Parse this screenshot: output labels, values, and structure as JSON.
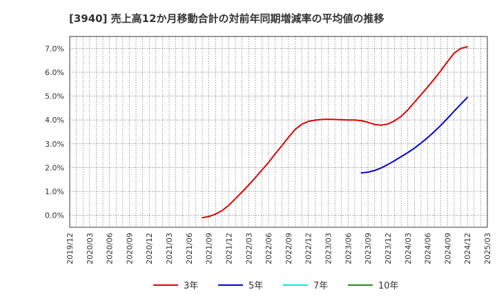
{
  "chart_data": {
    "type": "line",
    "title": "[3940]  売上高12か月移動合計の対前年同期増減率の平均値の推移",
    "xlabel": "",
    "ylabel": "",
    "ylim": [
      -0.5,
      7.5
    ],
    "y_ticks": [
      0.0,
      1.0,
      2.0,
      3.0,
      4.0,
      5.0,
      6.0,
      7.0
    ],
    "y_tick_labels": [
      "0.0%",
      "1.0%",
      "2.0%",
      "3.0%",
      "4.0%",
      "5.0%",
      "6.0%",
      "7.0%"
    ],
    "x_tick_labels": [
      "2019/12",
      "2020/03",
      "2020/06",
      "2020/09",
      "2020/12",
      "2021/03",
      "2021/06",
      "2021/09",
      "2021/12",
      "2022/03",
      "2022/06",
      "2022/09",
      "2022/12",
      "2023/03",
      "2023/06",
      "2023/09",
      "2023/12",
      "2024/03",
      "2024/06",
      "2024/09",
      "2024/12",
      "2025/03"
    ],
    "grid": true,
    "legend_position": "bottom",
    "series": [
      {
        "name": "3年",
        "color": "#dd0000",
        "points": [
          [
            "2021/08",
            -0.1
          ],
          [
            "2021/09",
            -0.05
          ],
          [
            "2021/10",
            0.05
          ],
          [
            "2021/11",
            0.2
          ],
          [
            "2021/12",
            0.42
          ],
          [
            "2022/01",
            0.7
          ],
          [
            "2022/02",
            0.98
          ],
          [
            "2022/03",
            1.27
          ],
          [
            "2022/04",
            1.58
          ],
          [
            "2022/05",
            1.9
          ],
          [
            "2022/06",
            2.22
          ],
          [
            "2022/07",
            2.58
          ],
          [
            "2022/08",
            2.92
          ],
          [
            "2022/09",
            3.27
          ],
          [
            "2022/10",
            3.6
          ],
          [
            "2022/11",
            3.82
          ],
          [
            "2022/12",
            3.94
          ],
          [
            "2023/01",
            3.99
          ],
          [
            "2023/02",
            4.02
          ],
          [
            "2023/03",
            4.03
          ],
          [
            "2023/04",
            4.02
          ],
          [
            "2023/05",
            4.01
          ],
          [
            "2023/06",
            4.0
          ],
          [
            "2023/07",
            4.0
          ],
          [
            "2023/08",
            3.97
          ],
          [
            "2023/09",
            3.9
          ],
          [
            "2023/10",
            3.81
          ],
          [
            "2023/11",
            3.78
          ],
          [
            "2023/12",
            3.83
          ],
          [
            "2024/01",
            3.96
          ],
          [
            "2024/02",
            4.15
          ],
          [
            "2024/03",
            4.42
          ],
          [
            "2024/04",
            4.74
          ],
          [
            "2024/05",
            5.06
          ],
          [
            "2024/06",
            5.38
          ],
          [
            "2024/07",
            5.72
          ],
          [
            "2024/08",
            6.07
          ],
          [
            "2024/09",
            6.45
          ],
          [
            "2024/10",
            6.8
          ],
          [
            "2024/11",
            7.0
          ],
          [
            "2024/12",
            7.07
          ]
        ]
      },
      {
        "name": "5年",
        "color": "#0000cc",
        "points": [
          [
            "2023/08",
            1.78
          ],
          [
            "2023/09",
            1.81
          ],
          [
            "2023/10",
            1.88
          ],
          [
            "2023/11",
            1.99
          ],
          [
            "2023/12",
            2.13
          ],
          [
            "2024/01",
            2.29
          ],
          [
            "2024/02",
            2.46
          ],
          [
            "2024/03",
            2.63
          ],
          [
            "2024/04",
            2.82
          ],
          [
            "2024/05",
            3.03
          ],
          [
            "2024/06",
            3.26
          ],
          [
            "2024/07",
            3.51
          ],
          [
            "2024/08",
            3.78
          ],
          [
            "2024/09",
            4.07
          ],
          [
            "2024/10",
            4.37
          ],
          [
            "2024/11",
            4.66
          ],
          [
            "2024/12",
            4.95
          ]
        ]
      },
      {
        "name": "7年",
        "color": "#00e5ee",
        "points": []
      },
      {
        "name": "10年",
        "color": "#228b22",
        "points": []
      }
    ]
  }
}
